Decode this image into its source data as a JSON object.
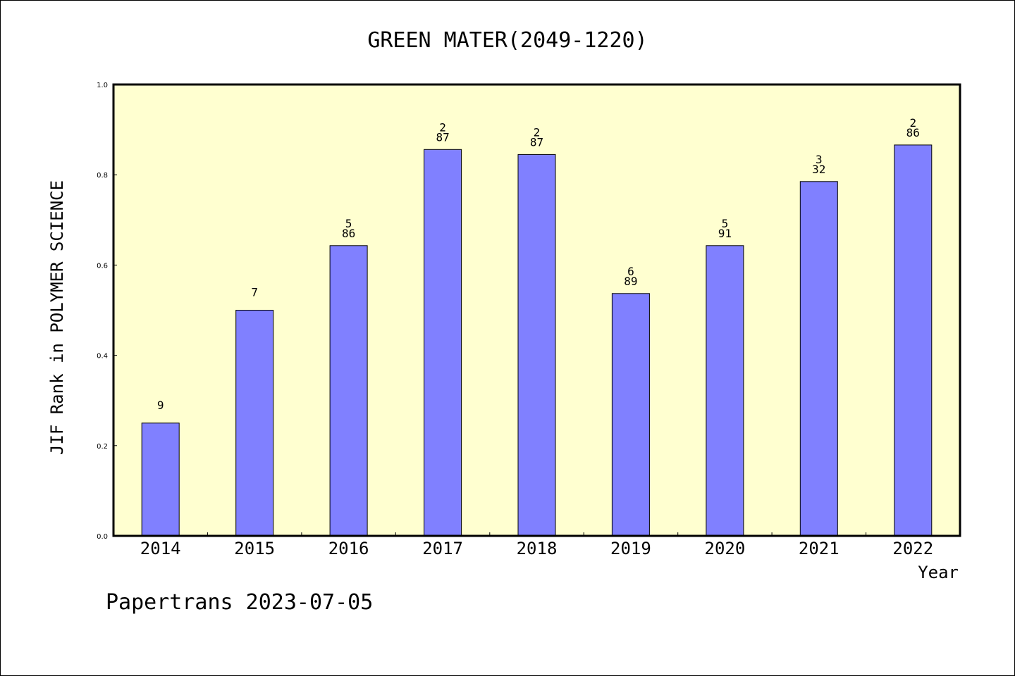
{
  "chart_data": {
    "type": "bar",
    "title": "GREEN MATER(2049-1220)",
    "xlabel": "Year",
    "ylabel": "JIF Rank in POLYMER SCIENCE",
    "ylim": [
      0.0,
      1.0
    ],
    "yticks": [
      "0.0",
      "0.2",
      "0.4",
      "0.6",
      "0.8",
      "1.0"
    ],
    "categories": [
      "2014",
      "2015",
      "2016",
      "2017",
      "2018",
      "2019",
      "2020",
      "2021",
      "2022"
    ],
    "values": [
      0.25,
      0.5,
      0.643,
      0.856,
      0.845,
      0.537,
      0.643,
      0.785,
      0.866
    ],
    "bar_labels": [
      [
        "9"
      ],
      [
        "7"
      ],
      [
        "5",
        "86"
      ],
      [
        "2",
        "87"
      ],
      [
        "2",
        "87"
      ],
      [
        "6",
        "89"
      ],
      [
        "5",
        "91"
      ],
      [
        "3",
        "32"
      ],
      [
        "2",
        "86"
      ]
    ],
    "grid": false,
    "colors": {
      "bar_fill": "#8080ff",
      "plot_background": "#ffffd0",
      "axis": "#000000"
    }
  },
  "footer": "Papertrans 2023-07-05"
}
